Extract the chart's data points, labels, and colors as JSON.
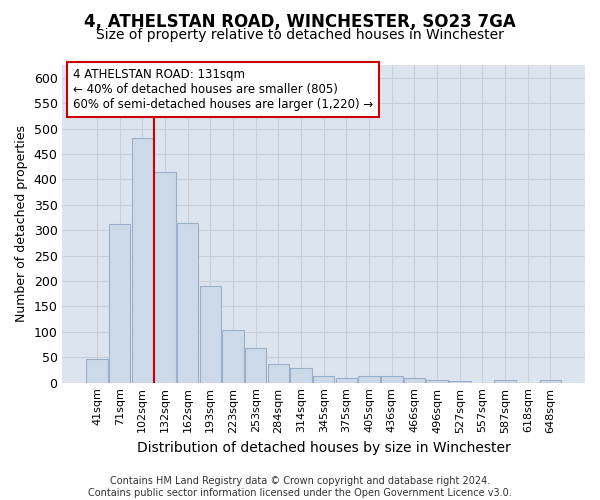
{
  "title": "4, ATHELSTAN ROAD, WINCHESTER, SO23 7GA",
  "subtitle": "Size of property relative to detached houses in Winchester",
  "xlabel": "Distribution of detached houses by size in Winchester",
  "ylabel": "Number of detached properties",
  "categories": [
    "41sqm",
    "71sqm",
    "102sqm",
    "132sqm",
    "162sqm",
    "193sqm",
    "223sqm",
    "253sqm",
    "284sqm",
    "314sqm",
    "345sqm",
    "375sqm",
    "405sqm",
    "436sqm",
    "466sqm",
    "496sqm",
    "527sqm",
    "557sqm",
    "587sqm",
    "618sqm",
    "648sqm"
  ],
  "values": [
    46,
    312,
    482,
    415,
    314,
    190,
    103,
    69,
    37,
    29,
    13,
    10,
    13,
    13,
    9,
    6,
    4,
    0,
    5,
    0,
    5
  ],
  "bar_color": "#ccd9e8",
  "bar_edge_color": "#9ab0c8",
  "grid_color": "#c8d0dc",
  "plot_bg_color": "#dce4ef",
  "fig_bg_color": "#ffffff",
  "vline_color": "#cc0000",
  "vline_index": 2.5,
  "annotation_text": "4 ATHELSTAN ROAD: 131sqm\n← 40% of detached houses are smaller (805)\n60% of semi-detached houses are larger (1,220) →",
  "annotation_box_facecolor": "#ffffff",
  "annotation_box_edgecolor": "#cc0000",
  "title_fontsize": 12,
  "subtitle_fontsize": 10,
  "xlabel_fontsize": 10,
  "ylabel_fontsize": 9,
  "ytick_fontsize": 9,
  "xtick_fontsize": 8,
  "footer_text": "Contains HM Land Registry data © Crown copyright and database right 2024.\nContains public sector information licensed under the Open Government Licence v3.0.",
  "ylim": [
    0,
    625
  ],
  "yticks": [
    0,
    50,
    100,
    150,
    200,
    250,
    300,
    350,
    400,
    450,
    500,
    550,
    600
  ]
}
